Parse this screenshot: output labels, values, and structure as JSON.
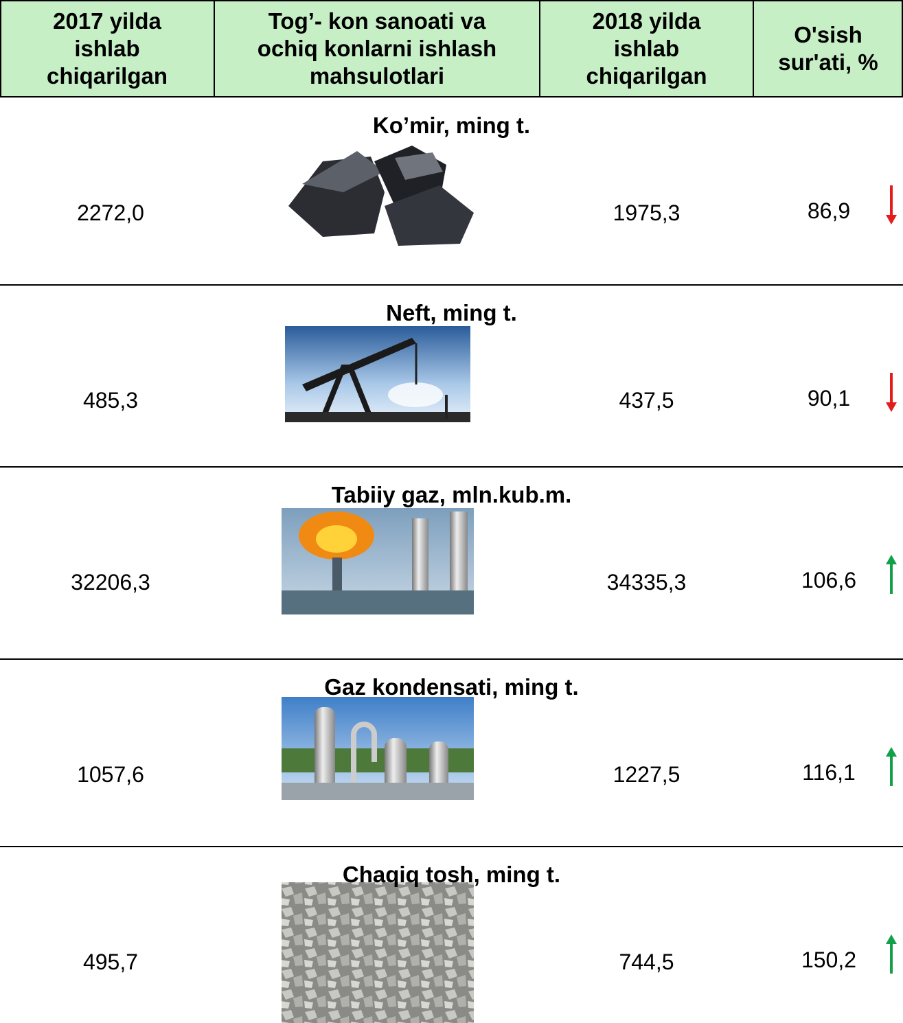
{
  "table": {
    "header": [
      [
        "2017 yilda",
        "ishlab",
        "chiqarilgan"
      ],
      [
        "Tog’- kon sanoati va",
        "ochiq konlarni ishlash",
        "mahsulotlari"
      ],
      [
        "2018 yilda",
        "ishlab",
        "chiqarilgan"
      ],
      [
        "O'sish",
        "sur'ati, %"
      ]
    ],
    "header_color": "#c6efc6",
    "rows": [
      {
        "title": "Ko’mir, ming t.",
        "v2017": "2272,0",
        "v2018": "1975,3",
        "growth": "86,9",
        "arrow": "down"
      },
      {
        "title": "Neft, ming t.",
        "v2017": "485,3",
        "v2018": "437,5",
        "growth": "90,1",
        "arrow": "down"
      },
      {
        "title": "Tabiiy gaz, mln.kub.m.",
        "v2017": "32206,3",
        "v2018": "34335,3",
        "growth": "106,6",
        "arrow": "up"
      },
      {
        "title": "Gaz kondensati, ming t.",
        "v2017": "1057,6",
        "v2018": "1227,5",
        "growth": "116,1",
        "arrow": "up"
      },
      {
        "title": "Chaqiq tosh, ming t.",
        "v2017": "495,7",
        "v2018": "744,5",
        "growth": "150,2",
        "arrow": "up"
      }
    ]
  }
}
